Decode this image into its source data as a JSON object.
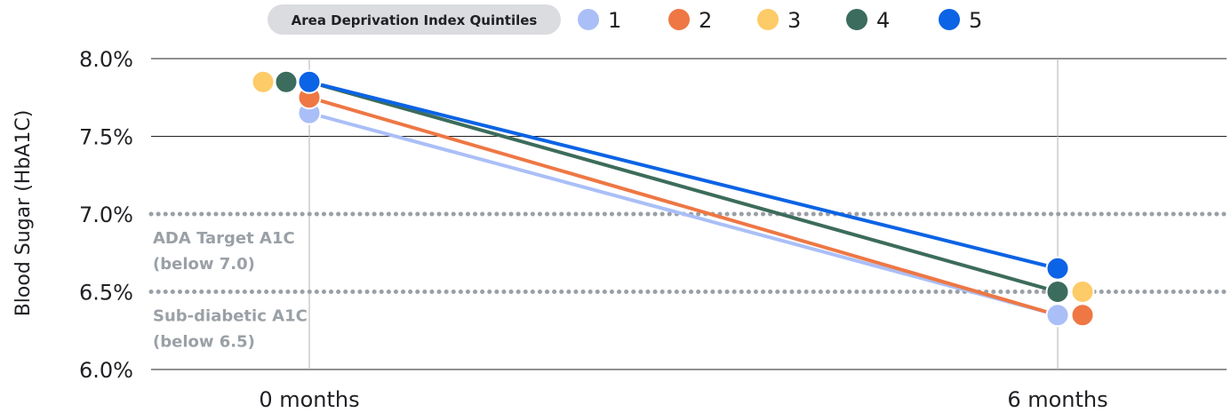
{
  "chart_data": {
    "type": "line",
    "title": "",
    "xlabel": "",
    "ylabel": "Blood Sugar (HbA1C)",
    "categories": [
      "0 months",
      "6 months"
    ],
    "yticks": [
      "6.0%",
      "6.5%",
      "7.0%",
      "7.5%",
      "8.0%"
    ],
    "ylim": [
      6.0,
      8.0
    ],
    "legend_title": "Area Deprivation Index Quintiles",
    "legend_position": "top",
    "grid": true,
    "series": [
      {
        "name": "1",
        "color": "#aabff7",
        "values": [
          7.65,
          6.35
        ]
      },
      {
        "name": "2",
        "color": "#ee7744",
        "values": [
          7.75,
          6.35
        ]
      },
      {
        "name": "3",
        "color": "#fdcb67",
        "values": [
          7.85,
          6.5
        ]
      },
      {
        "name": "4",
        "color": "#3b6c5e",
        "values": [
          7.85,
          6.5
        ]
      },
      {
        "name": "5",
        "color": "#0b63e5",
        "values": [
          7.85,
          6.65
        ]
      }
    ],
    "reference_lines": [
      {
        "value": 7.0,
        "label_line1": "ADA Target A1C",
        "label_line2": "(below 7.0)"
      },
      {
        "value": 6.5,
        "label_line1": "Sub-diabetic A1C",
        "label_line2": "(below 6.5)"
      }
    ]
  }
}
